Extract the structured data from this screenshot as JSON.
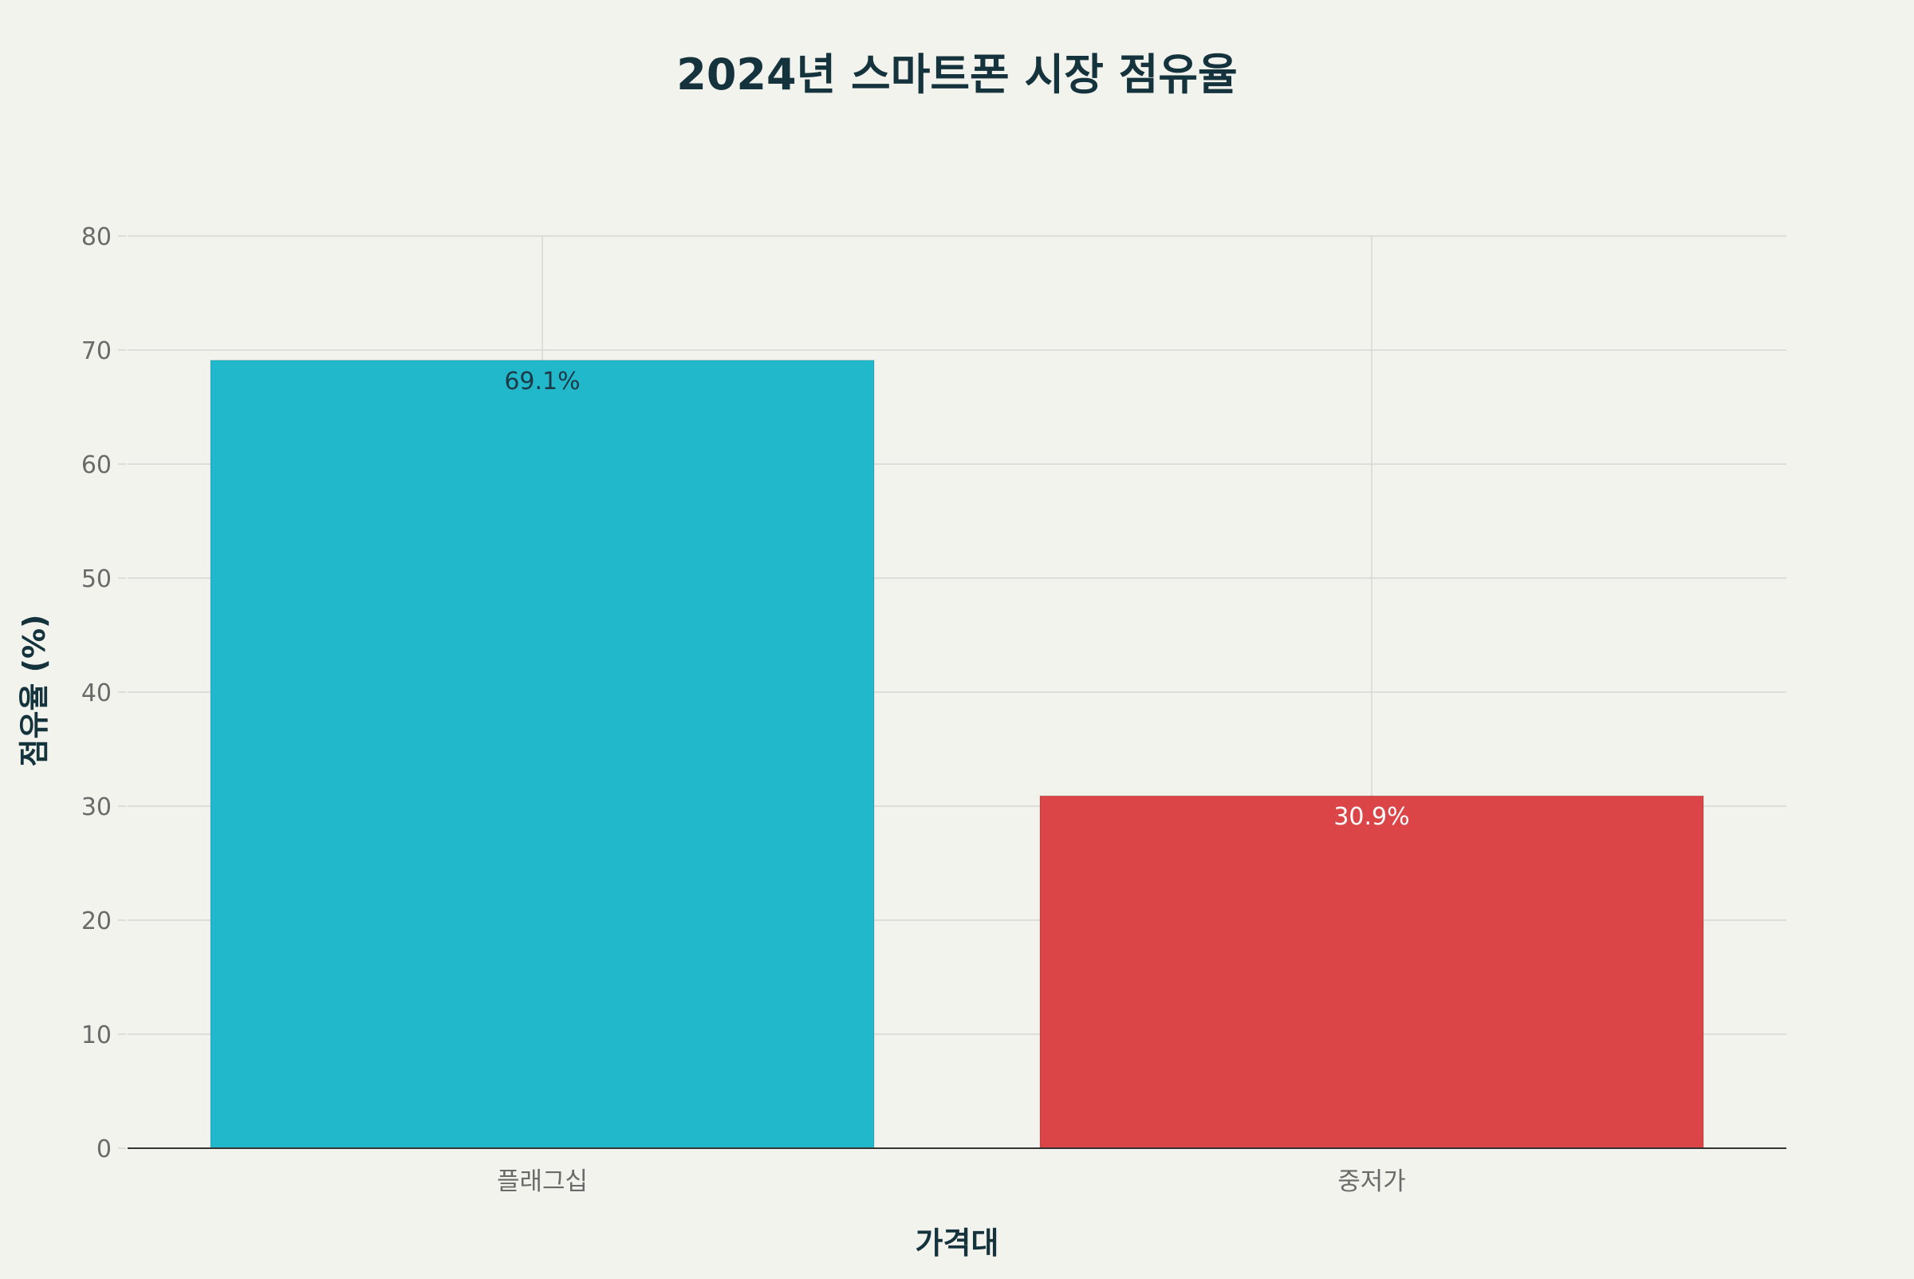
{
  "chart_data": {
    "type": "bar",
    "title": "2024년 스마트폰 시장 점유율",
    "xlabel": "가격대",
    "ylabel": "점유율 (%)",
    "categories": [
      "플래그십",
      "중저가"
    ],
    "values": [
      69.1,
      30.9
    ],
    "value_labels": [
      "69.1%",
      "30.9%"
    ],
    "ylim": [
      0,
      80
    ],
    "yticks": [
      0,
      10,
      20,
      30,
      40,
      50,
      60,
      70,
      80
    ],
    "grid": true,
    "legend": "none",
    "colors": {
      "bars": [
        "#21b8cc",
        "#db4548"
      ],
      "value_label_text": [
        "#1e3a46",
        "#ffffff"
      ],
      "background": "#f3f3ee",
      "grid": "#d6d6d2",
      "axis_line": "#333333",
      "tick_text": "#6a6a6a",
      "title_text": "#15333d"
    }
  }
}
